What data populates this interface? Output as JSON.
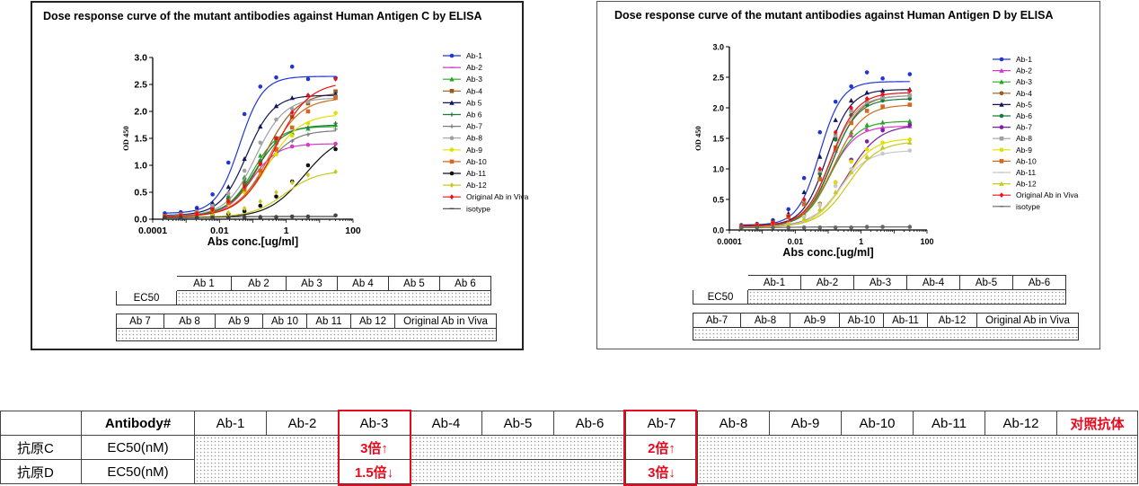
{
  "chart_data": [
    {
      "type": "line",
      "title": "Dose response curve of the mutant antibodies against Human Antigen C by ELISA",
      "xlabel": "Abs conc.[ug/ml]",
      "ylabel": "OD 450",
      "xscale": "log",
      "xlim": [
        0.0001,
        100
      ],
      "ylim": [
        0,
        3.0
      ],
      "x_ticks": [
        "0.0001",
        "0.01",
        "1",
        "100"
      ],
      "y_ticks": [
        "0.0",
        "0.5",
        "1.0",
        "1.5",
        "2.0",
        "2.5",
        "3.0"
      ],
      "legend_position": "right",
      "x": [
        0.00023,
        0.00069,
        0.0021,
        0.0062,
        0.0185,
        0.056,
        0.167,
        0.5,
        1.5,
        4.5,
        30
      ],
      "series": [
        {
          "name": "Ab-1",
          "color": "#1f35d6",
          "marker": "circle",
          "top": 2.65,
          "ec50": 0.04,
          "hill": 1.25,
          "values": [
            0.11,
            0.13,
            0.21,
            0.46,
            1.05,
            1.95,
            2.46,
            2.63,
            2.83,
            2.6,
            2.62
          ]
        },
        {
          "name": "Ab-2",
          "color": "#d63ac8",
          "marker": "dash",
          "top": 1.4,
          "ec50": 0.09,
          "hill": 1.1,
          "values": [
            0.05,
            0.08,
            0.12,
            0.22,
            0.41,
            0.75,
            1.08,
            1.28,
            1.35,
            1.38,
            1.4
          ]
        },
        {
          "name": "Ab-3",
          "color": "#26a626",
          "marker": "triangle",
          "top": 1.72,
          "ec50": 0.1,
          "hill": 1.1,
          "values": [
            0.06,
            0.09,
            0.13,
            0.22,
            0.43,
            0.78,
            1.18,
            1.45,
            1.6,
            1.68,
            1.75
          ]
        },
        {
          "name": "Ab-4",
          "color": "#9a5a1a",
          "marker": "square",
          "top": 2.35,
          "ec50": 0.23,
          "hill": 0.9,
          "values": [
            0.06,
            0.08,
            0.12,
            0.2,
            0.36,
            0.66,
            1.05,
            1.5,
            1.9,
            2.15,
            2.37
          ]
        },
        {
          "name": "Ab 5",
          "color": "#14145a",
          "marker": "triangle",
          "top": 2.3,
          "ec50": 0.065,
          "hill": 1.1,
          "values": [
            0.07,
            0.1,
            0.17,
            0.3,
            0.6,
            1.12,
            1.72,
            2.1,
            2.25,
            2.3,
            2.32
          ]
        },
        {
          "name": "Ab 6",
          "color": "#1a7a3a",
          "marker": "plus",
          "top": 1.75,
          "ec50": 0.12,
          "hill": 1.0,
          "values": [
            0.06,
            0.08,
            0.12,
            0.2,
            0.38,
            0.7,
            1.08,
            1.4,
            1.58,
            1.7,
            1.78
          ]
        },
        {
          "name": "Ab-7",
          "color": "#7a7a7a",
          "marker": "plus",
          "top": 1.65,
          "ec50": 0.18,
          "hill": 0.95,
          "values": [
            0.05,
            0.07,
            0.1,
            0.17,
            0.32,
            0.58,
            0.92,
            1.22,
            1.45,
            1.57,
            1.67
          ]
        },
        {
          "name": "Ab-8",
          "color": "#a0a0a0",
          "marker": "circle",
          "top": 2.25,
          "ec50": 0.12,
          "hill": 1.0,
          "values": [
            0.06,
            0.09,
            0.14,
            0.25,
            0.48,
            0.9,
            1.42,
            1.85,
            2.05,
            2.18,
            2.27
          ]
        },
        {
          "name": "Ab-9",
          "color": "#e0e000",
          "marker": "circle",
          "top": 1.95,
          "ec50": 0.28,
          "hill": 0.9,
          "values": [
            0.05,
            0.07,
            0.1,
            0.16,
            0.28,
            0.5,
            0.82,
            1.2,
            1.55,
            1.78,
            1.97
          ]
        },
        {
          "name": "Ab-10",
          "color": "#d2691e",
          "marker": "square",
          "top": 2.25,
          "ec50": 0.3,
          "hill": 0.9,
          "values": [
            0.05,
            0.07,
            0.1,
            0.17,
            0.3,
            0.55,
            0.9,
            1.3,
            1.7,
            2.0,
            2.25
          ]
        },
        {
          "name": "Ab-11",
          "color": "#111111",
          "marker": "circle",
          "top": 1.6,
          "ec50": 3.5,
          "hill": 0.8,
          "values": [
            0.03,
            0.04,
            0.05,
            0.07,
            0.1,
            0.15,
            0.25,
            0.42,
            0.7,
            1.0,
            1.3
          ]
        },
        {
          "name": "Ab-12",
          "color": "#c8c81e",
          "marker": "diamond",
          "top": 0.9,
          "ec50": 0.9,
          "hill": 0.9,
          "values": [
            0.04,
            0.05,
            0.06,
            0.08,
            0.12,
            0.2,
            0.33,
            0.5,
            0.68,
            0.82,
            0.88
          ]
        },
        {
          "name": "Original Ab in Viva",
          "color": "#ee1111",
          "marker": "diamond",
          "top": 2.55,
          "ec50": 0.45,
          "hill": 0.85,
          "values": [
            0.05,
            0.07,
            0.11,
            0.18,
            0.33,
            0.6,
            1.02,
            1.5,
            1.98,
            2.3,
            2.6
          ]
        },
        {
          "name": "isotype",
          "color": "#444444",
          "marker": "dash",
          "top": 0.05,
          "ec50": 0.01,
          "hill": 1.0,
          "values": [
            0.03,
            0.03,
            0.03,
            0.03,
            0.03,
            0.04,
            0.04,
            0.04,
            0.05,
            0.05,
            0.07
          ]
        }
      ]
    },
    {
      "type": "line",
      "title": "Dose response curve of the mutant antibodies against Human Antigen D by ELISA",
      "xlabel": "Abs conc.[ug/ml]",
      "ylabel": "OD 450",
      "xscale": "log",
      "xlim": [
        0.0001,
        100
      ],
      "ylim": [
        0,
        3.0
      ],
      "x_ticks": [
        "0.0001",
        "0.01",
        "1",
        "100"
      ],
      "y_ticks": [
        "0.0",
        "0.5",
        "1.0",
        "1.5",
        "2.0",
        "2.5",
        "3.0"
      ],
      "legend_position": "right",
      "x": [
        0.00023,
        0.00069,
        0.0021,
        0.0062,
        0.0185,
        0.056,
        0.167,
        0.5,
        1.5,
        4.5,
        30
      ],
      "series": [
        {
          "name": "Ab-1",
          "color": "#1f35d6",
          "marker": "circle",
          "top": 2.43,
          "ec50": 0.055,
          "hill": 1.3,
          "values": [
            0.08,
            0.1,
            0.16,
            0.34,
            0.85,
            1.6,
            2.1,
            2.35,
            2.58,
            2.48,
            2.55
          ]
        },
        {
          "name": "Ab-2",
          "color": "#d63ac8",
          "marker": "triangle",
          "top": 1.7,
          "ec50": 0.11,
          "hill": 1.1,
          "values": [
            0.06,
            0.08,
            0.12,
            0.22,
            0.45,
            0.85,
            1.3,
            1.55,
            1.65,
            1.68,
            1.7
          ]
        },
        {
          "name": "Ab-3",
          "color": "#26a626",
          "marker": "triangle",
          "top": 1.78,
          "ec50": 0.12,
          "hill": 1.1,
          "values": [
            0.06,
            0.08,
            0.12,
            0.22,
            0.45,
            0.87,
            1.33,
            1.6,
            1.72,
            1.76,
            1.78
          ]
        },
        {
          "name": "Ab-4",
          "color": "#9a5a1a",
          "marker": "circle",
          "top": 2.2,
          "ec50": 0.14,
          "hill": 1.1,
          "values": [
            0.07,
            0.09,
            0.13,
            0.23,
            0.46,
            0.92,
            1.5,
            1.95,
            2.1,
            2.17,
            2.2
          ]
        },
        {
          "name": "Ab-5",
          "color": "#14145a",
          "marker": "triangle",
          "top": 2.3,
          "ec50": 0.09,
          "hill": 1.2,
          "values": [
            0.07,
            0.09,
            0.14,
            0.27,
            0.62,
            1.2,
            1.8,
            2.12,
            2.25,
            2.28,
            2.3
          ]
        },
        {
          "name": "Ab-6",
          "color": "#1a7a3a",
          "marker": "circle",
          "top": 2.15,
          "ec50": 0.13,
          "hill": 1.1,
          "values": [
            0.06,
            0.08,
            0.12,
            0.22,
            0.46,
            0.93,
            1.48,
            1.88,
            2.05,
            2.12,
            2.15
          ]
        },
        {
          "name": "Ab-7",
          "color": "#7d1fa6",
          "marker": "circle",
          "top": 1.72,
          "ec50": 0.38,
          "hill": 0.9,
          "values": [
            0.05,
            0.06,
            0.08,
            0.13,
            0.23,
            0.43,
            0.78,
            1.15,
            1.45,
            1.63,
            1.72
          ]
        },
        {
          "name": "Ab-8",
          "color": "#a0a0a0",
          "marker": "square",
          "top": 2.2,
          "ec50": 0.12,
          "hill": 1.1,
          "values": [
            0.06,
            0.08,
            0.12,
            0.23,
            0.48,
            0.97,
            1.55,
            1.95,
            2.1,
            2.17,
            2.2
          ]
        },
        {
          "name": "Ab-9",
          "color": "#e0e000",
          "marker": "circle",
          "top": 1.5,
          "ec50": 0.3,
          "hill": 1.0,
          "values": [
            0.05,
            0.06,
            0.08,
            0.12,
            0.22,
            0.42,
            0.78,
            1.12,
            1.32,
            1.43,
            1.48
          ]
        },
        {
          "name": "Ab-10",
          "color": "#d2691e",
          "marker": "square",
          "top": 2.05,
          "ec50": 0.15,
          "hill": 1.0,
          "values": [
            0.06,
            0.08,
            0.12,
            0.21,
            0.42,
            0.83,
            1.35,
            1.75,
            1.95,
            2.02,
            2.05
          ]
        },
        {
          "name": "Ab-11",
          "color": "#c8c8c8",
          "marker": "dash",
          "top": 1.3,
          "ec50": 0.22,
          "hill": 1.0,
          "values": [
            0.05,
            0.06,
            0.08,
            0.12,
            0.21,
            0.4,
            0.72,
            1.0,
            1.18,
            1.25,
            1.3
          ]
        },
        {
          "name": "Ab-12",
          "color": "#c8c81e",
          "marker": "triangle",
          "top": 1.45,
          "ec50": 0.4,
          "hill": 0.95,
          "values": [
            0.05,
            0.06,
            0.08,
            0.11,
            0.18,
            0.34,
            0.62,
            0.95,
            1.2,
            1.35,
            1.43
          ]
        },
        {
          "name": "Original Ab in Viva",
          "color": "#ee1111",
          "marker": "diamond",
          "top": 2.25,
          "ec50": 0.12,
          "hill": 1.1,
          "values": [
            0.06,
            0.08,
            0.12,
            0.23,
            0.5,
            1.0,
            1.6,
            2.0,
            2.15,
            2.22,
            2.28
          ]
        },
        {
          "name": "isotype",
          "color": "#666666",
          "marker": "dash",
          "top": 0.05,
          "ec50": 0.01,
          "hill": 1.0,
          "values": [
            0.04,
            0.04,
            0.04,
            0.04,
            0.04,
            0.04,
            0.04,
            0.04,
            0.05,
            0.05,
            0.05
          ]
        }
      ]
    }
  ],
  "panel_c": {
    "table_row1": [
      "Ab 1",
      "Ab 2",
      "Ab 3",
      "Ab 4",
      "Ab 5",
      "Ab 6"
    ],
    "table_row2": [
      "Ab 7",
      "Ab 8",
      "Ab 9",
      "Ab 10",
      "Ab 11",
      "Ab 12",
      "Original Ab in Viva"
    ],
    "ec50_label": "EC50"
  },
  "panel_d": {
    "table_row1": [
      "Ab-1",
      "Ab-2",
      "Ab-3",
      "Ab-4",
      "Ab-5",
      "Ab-6"
    ],
    "table_row2": [
      "Ab-7",
      "Ab-8",
      "Ab-9",
      "Ab-10",
      "Ab-11",
      "Ab-12",
      "Original Ab in Viva"
    ],
    "ec50_label": "EC50"
  },
  "summary": {
    "header_label": "Antibody#",
    "columns": [
      "Ab-1",
      "Ab-2",
      "Ab-3",
      "Ab-4",
      "Ab-5",
      "Ab-6",
      "Ab-7",
      "Ab-8",
      "Ab-9",
      "Ab-10",
      "Ab-11",
      "Ab-12"
    ],
    "control_label": "对照抗体",
    "rows": [
      {
        "antigen": "抗原C",
        "metric": "EC50(nM)",
        "ab3": "3倍↑",
        "ab7": "2倍↑"
      },
      {
        "antigen": "抗原D",
        "metric": "EC50(nM)",
        "ab3": "1.5倍↓",
        "ab7": "3倍↓"
      }
    ],
    "highlight_color": "#e8091d"
  }
}
